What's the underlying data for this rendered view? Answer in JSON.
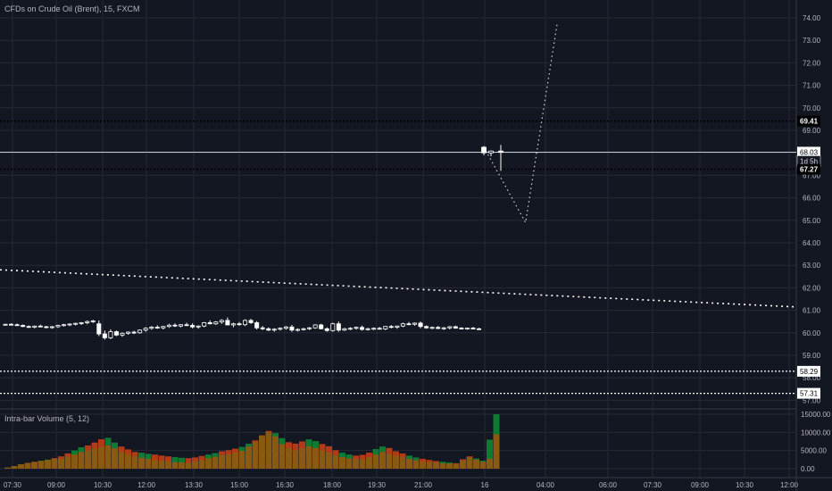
{
  "header": {
    "symbol_title": "CFDs on Crude Oil (Brent), 15, FXCM"
  },
  "volume_pane": {
    "title": "Intra-bar Volume (5, 12)"
  },
  "colors": {
    "background": "#131722",
    "grid": "#262a36",
    "axis_text": "#b2b5be",
    "candle": "#ffffff",
    "volume_up": "#0f7a34",
    "volume_down": "#b33a17",
    "volume_mid": "#8a5a12"
  },
  "chart_data": [
    {
      "type": "candlestick",
      "yticks": [
        "57.00",
        "58.00",
        "59.00",
        "60.00",
        "61.00",
        "62.00",
        "63.00",
        "64.00",
        "65.00",
        "66.00",
        "67.00",
        "68.00",
        "69.00",
        "70.00",
        "71.00",
        "72.00",
        "73.00",
        "74.00"
      ],
      "ylim": [
        56.6,
        74.4
      ],
      "xticks": [
        "07:30",
        "09:00",
        "10:30",
        "12:00",
        "13:30",
        "15:00",
        "16:30",
        "18:00",
        "19:30",
        "21:00",
        "16",
        "04:00",
        "06:00",
        "07:30",
        "09:00",
        "10:30",
        "12:00"
      ],
      "price_labels": [
        {
          "text": "69.41",
          "value": 69.41,
          "style": "dotted"
        },
        {
          "text": "68.03",
          "value": 68.03,
          "style": "solid"
        },
        {
          "text": "1d 5h",
          "value": 67.63,
          "style": "countdown"
        },
        {
          "text": "67.27",
          "value": 67.27,
          "style": "dotted"
        },
        {
          "text": "58.29",
          "value": 58.29,
          "style": "dotted"
        },
        {
          "text": "57.31",
          "value": 57.31,
          "style": "dotted"
        }
      ],
      "trendline": {
        "from": [
          0,
          62.8
        ],
        "to": [
          1,
          61.15
        ],
        "style": "dotted"
      },
      "projection": [
        [
          0.66,
          64.9
        ],
        [
          0.61,
          68.1
        ],
        [
          0.7,
          73.8
        ]
      ],
      "candles_day1": [
        [
          60.36,
          60.4,
          60.31,
          60.38
        ],
        [
          60.38,
          60.42,
          60.33,
          60.36
        ],
        [
          60.36,
          60.41,
          60.3,
          60.33
        ],
        [
          60.33,
          60.37,
          60.25,
          60.28
        ],
        [
          60.28,
          60.33,
          60.22,
          60.25
        ],
        [
          60.25,
          60.32,
          60.2,
          60.3
        ],
        [
          60.3,
          60.36,
          60.25,
          60.27
        ],
        [
          60.27,
          60.31,
          60.2,
          60.24
        ],
        [
          60.24,
          60.3,
          60.18,
          60.27
        ],
        [
          60.27,
          60.36,
          60.22,
          60.33
        ],
        [
          60.33,
          60.4,
          60.28,
          60.36
        ],
        [
          60.36,
          60.42,
          60.3,
          60.39
        ],
        [
          60.39,
          60.45,
          60.33,
          60.42
        ],
        [
          60.42,
          60.48,
          60.35,
          60.45
        ],
        [
          60.45,
          60.55,
          60.38,
          60.5
        ],
        [
          60.5,
          60.58,
          60.44,
          60.53
        ],
        [
          60.4,
          60.55,
          59.85,
          59.95
        ],
        [
          59.95,
          60.1,
          59.7,
          59.78
        ],
        [
          59.78,
          60.15,
          59.72,
          60.05
        ],
        [
          60.05,
          60.1,
          59.85,
          59.9
        ],
        [
          59.9,
          60.02,
          59.82,
          59.98
        ],
        [
          59.98,
          60.06,
          59.92,
          60.03
        ],
        [
          60.03,
          60.09,
          59.95,
          60.0
        ],
        [
          60.0,
          60.15,
          59.96,
          60.12
        ],
        [
          60.12,
          60.25,
          60.05,
          60.2
        ],
        [
          60.2,
          60.3,
          60.14,
          60.25
        ],
        [
          60.25,
          60.33,
          60.18,
          60.22
        ],
        [
          60.22,
          60.31,
          60.15,
          60.28
        ],
        [
          60.28,
          60.4,
          60.22,
          60.34
        ],
        [
          60.34,
          60.42,
          60.26,
          60.3
        ],
        [
          60.3,
          60.38,
          60.24,
          60.36
        ],
        [
          60.36,
          60.45,
          60.3,
          60.33
        ],
        [
          60.33,
          60.42,
          60.2,
          60.26
        ],
        [
          60.26,
          60.33,
          60.18,
          60.3
        ],
        [
          60.3,
          60.48,
          60.25,
          60.45
        ],
        [
          60.45,
          60.55,
          60.38,
          60.4
        ],
        [
          60.4,
          60.52,
          60.35,
          60.48
        ],
        [
          60.48,
          60.6,
          60.4,
          60.55
        ],
        [
          60.55,
          60.68,
          60.46,
          60.35
        ],
        [
          60.35,
          60.45,
          60.25,
          60.4
        ],
        [
          60.4,
          60.48,
          60.32,
          60.36
        ],
        [
          60.36,
          60.6,
          60.3,
          60.55
        ],
        [
          60.55,
          60.62,
          60.4,
          60.45
        ],
        [
          60.45,
          60.52,
          60.15,
          60.22
        ],
        [
          60.22,
          60.3,
          60.12,
          60.18
        ],
        [
          60.18,
          60.24,
          60.08,
          60.12
        ],
        [
          60.12,
          60.2,
          60.05,
          60.16
        ],
        [
          60.16,
          60.24,
          60.1,
          60.2
        ],
        [
          60.2,
          60.3,
          60.14,
          60.26
        ],
        [
          60.26,
          60.35,
          60.05,
          60.12
        ],
        [
          60.12,
          60.2,
          60.06,
          60.15
        ],
        [
          60.15,
          60.22,
          60.1,
          60.18
        ],
        [
          60.18,
          60.26,
          60.12,
          60.22
        ],
        [
          60.22,
          60.38,
          60.18,
          60.35
        ],
        [
          60.35,
          60.4,
          60.15,
          60.18
        ],
        [
          60.18,
          60.24,
          60.05,
          60.1
        ],
        [
          60.1,
          60.45,
          60.05,
          60.4
        ],
        [
          60.4,
          60.5,
          60.05,
          60.12
        ],
        [
          60.12,
          60.22,
          60.08,
          60.18
        ],
        [
          60.18,
          60.25,
          60.12,
          60.2
        ],
        [
          60.2,
          60.28,
          60.14,
          60.24
        ],
        [
          60.24,
          60.32,
          60.1,
          60.15
        ],
        [
          60.15,
          60.22,
          60.1,
          60.18
        ],
        [
          60.18,
          60.24,
          60.12,
          60.2
        ],
        [
          60.2,
          60.26,
          60.14,
          60.17
        ],
        [
          60.17,
          60.3,
          60.12,
          60.28
        ],
        [
          60.28,
          60.34,
          60.2,
          60.25
        ],
        [
          60.25,
          60.32,
          60.18,
          60.3
        ],
        [
          60.3,
          60.45,
          60.25,
          60.4
        ],
        [
          60.4,
          60.48,
          60.34,
          60.38
        ],
        [
          60.38,
          60.46,
          60.32,
          60.43
        ],
        [
          60.43,
          60.5,
          60.2,
          60.28
        ],
        [
          60.28,
          60.33,
          60.18,
          60.22
        ],
        [
          60.22,
          60.28,
          60.16,
          60.24
        ],
        [
          60.24,
          60.3,
          60.17,
          60.19
        ],
        [
          60.19,
          60.26,
          60.13,
          60.22
        ],
        [
          60.22,
          60.3,
          60.15,
          60.27
        ],
        [
          60.27,
          60.32,
          60.18,
          60.21
        ],
        [
          60.21,
          60.25,
          60.15,
          60.19
        ],
        [
          60.19,
          60.23,
          60.14,
          60.21
        ],
        [
          60.21,
          60.26,
          60.16,
          60.18
        ],
        [
          60.18,
          60.22,
          60.13,
          60.17
        ]
      ],
      "candles_day2": [
        [
          68.25,
          68.3,
          67.9,
          68.0
        ],
        [
          68.0,
          68.1,
          67.85,
          68.08
        ],
        [
          68.08,
          68.35,
          67.2,
          68.03
        ]
      ]
    },
    {
      "type": "bar",
      "title": "Intra-bar Volume (5, 12)",
      "yticks": [
        "0.00",
        "5000.00",
        "10000.00",
        "15000.00"
      ],
      "ylim": [
        -1800,
        16500
      ],
      "series": [
        {
          "values": [
            300,
            700,
            1200,
            1600,
            1900,
            2200,
            2500,
            2900,
            3400,
            4200,
            5000,
            5900,
            6400,
            7200,
            8100,
            8500,
            7200,
            6100,
            5300,
            4600,
            4400,
            4100,
            3900,
            3600,
            3400,
            3200,
            3000,
            2900,
            3100,
            3500,
            3900,
            4300,
            4800,
            5100,
            5500,
            6000,
            6900,
            7800,
            9200,
            10400,
            9800,
            8400,
            7300,
            6900,
            7500,
            8100,
            7600,
            6800,
            6200,
            5100,
            4400,
            3900,
            3600,
            3800,
            4400,
            5400,
            6100,
            5700,
            4800,
            4200,
            3600,
            3100,
            2700,
            2400,
            2100,
            1900,
            1700,
            1500,
            2600,
            3400,
            2800,
            2200,
            8000,
            15000
          ]
        },
        {
          "values": [
            300,
            700,
            1200,
            1600,
            1800,
            2100,
            2400,
            2700,
            2800,
            3300,
            3900,
            4600,
            4900,
            5500,
            6000,
            6400,
            5600,
            4700,
            4000,
            3400,
            3000,
            2700,
            2400,
            2200,
            2000,
            1800,
            1700,
            1600,
            2000,
            2400,
            2900,
            3300,
            3700,
            4000,
            4400,
            4900,
            6100,
            7400,
            9100,
            10100,
            8900,
            6800,
            5700,
            5100,
            5600,
            6200,
            5700,
            5000,
            4400,
            3700,
            3200,
            2800,
            2600,
            2600,
            3200,
            3900,
            4600,
            4100,
            3500,
            3100,
            2700,
            2300,
            2000,
            1800,
            1600,
            1500,
            1400,
            1300,
            2200,
            3200,
            2500,
            1900,
            2700,
            9500
          ]
        }
      ]
    }
  ]
}
